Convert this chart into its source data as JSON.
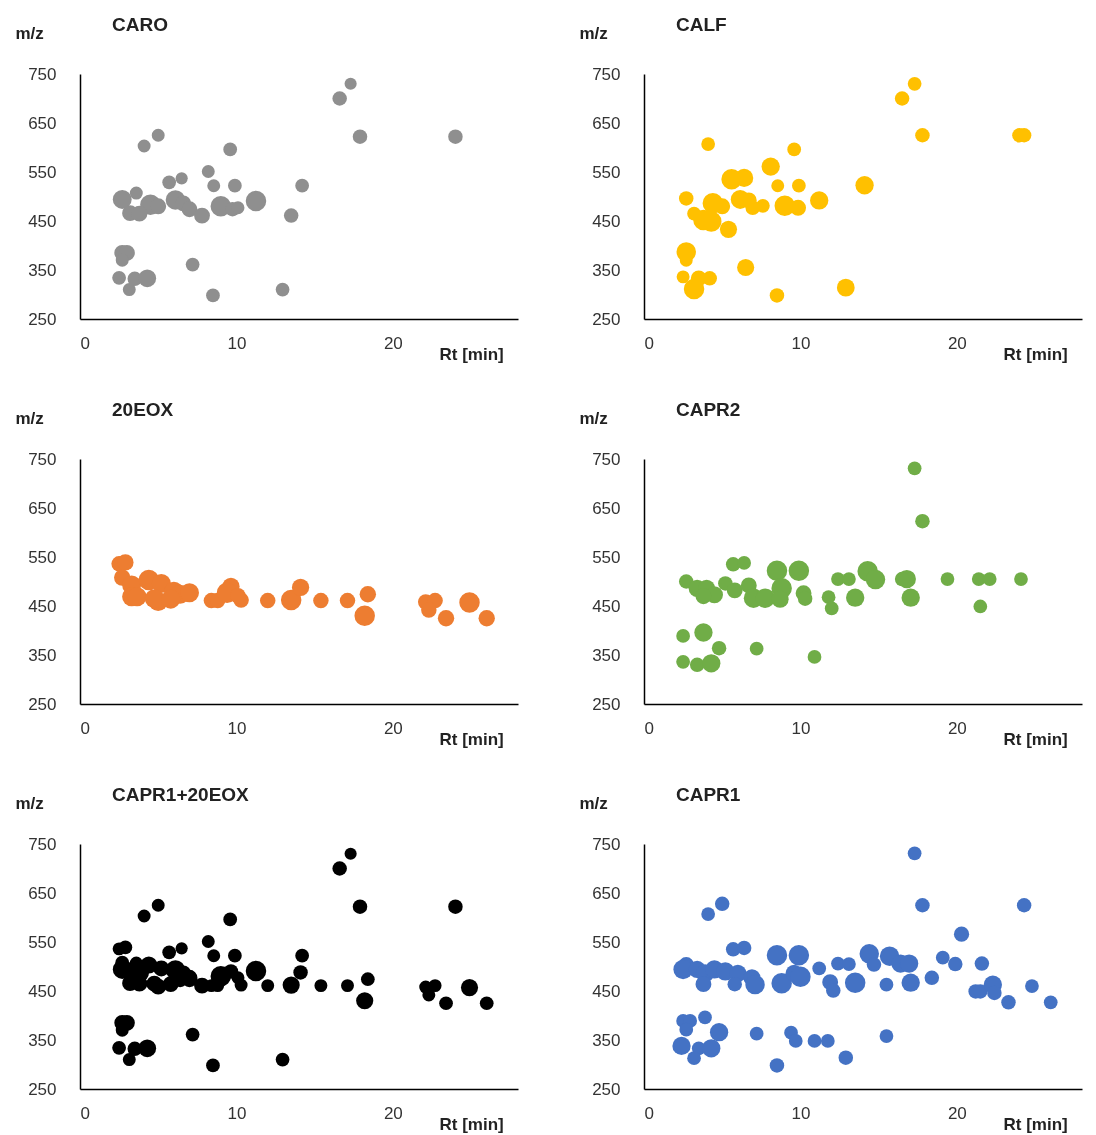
{
  "chart_data": [
    {
      "type": "bubble",
      "title": "CARO",
      "xlabel": "Rt [min]",
      "ylabel": "m/z",
      "xlim": [
        0,
        28
      ],
      "xticks": [
        0,
        10,
        20
      ],
      "ylim": [
        250,
        750
      ],
      "yticks": [
        250,
        350,
        450,
        550,
        650,
        750
      ],
      "series": [
        {
          "color": "#8f8f8f",
          "x": [
            17.3,
            16.6,
            17.9,
            24.0,
            5.0,
            4.1,
            9.6,
            8.2,
            6.5,
            5.7,
            8.55,
            9.9,
            14.2,
            3.6,
            2.7,
            4.5,
            5.0,
            3.2,
            3.8,
            6.1,
            6.6,
            7.0,
            7.8,
            9.0,
            9.75,
            10.1,
            11.25,
            13.5,
            2.7,
            3.0,
            2.7,
            7.2,
            2.5,
            3.5,
            4.3,
            3.15,
            8.5,
            12.95
          ],
          "values": [
            730,
            700,
            622,
            622,
            625,
            603,
            596,
            551,
            537,
            529,
            522,
            522,
            522,
            507,
            494,
            483,
            480,
            466,
            465,
            493,
            486,
            474,
            461,
            480,
            474,
            477,
            491,
            461,
            385,
            385,
            370,
            361,
            334,
            332,
            333,
            310,
            298,
            310
          ],
          "sizes": [
            0.35,
            0.5,
            0.5,
            0.5,
            0.4,
            0.4,
            0.45,
            0.4,
            0.35,
            0.45,
            0.4,
            0.45,
            0.45,
            0.4,
            0.85,
            1,
            0.6,
            0.6,
            0.6,
            0.9,
            0.6,
            0.6,
            0.6,
            1,
            0.5,
            0.4,
            1,
            0.5,
            0.6,
            0.6,
            0.4,
            0.45,
            0.45,
            0.5,
            0.75,
            0.4,
            0.45,
            0.45
          ]
        }
      ]
    },
    {
      "type": "bubble",
      "title": "CALF",
      "xlabel": "Rt [min]",
      "ylabel": "m/z",
      "xlim": [
        0,
        28
      ],
      "xticks": [
        0,
        10,
        20
      ],
      "ylim": [
        250,
        750
      ],
      "yticks": [
        250,
        350,
        450,
        550,
        650,
        750
      ],
      "series": [
        {
          "color": "#ffc000",
          "x": [
            17.3,
            16.5,
            17.8,
            24.0,
            24.3,
            4.1,
            9.6,
            8.1,
            5.6,
            6.4,
            8.55,
            9.9,
            14.1,
            2.7,
            4.4,
            5.0,
            3.2,
            3.8,
            4.3,
            5.4,
            6.15,
            6.7,
            6.95,
            7.6,
            9.0,
            9.85,
            11.2,
            2.7,
            2.7,
            6.5,
            2.5,
            3.5,
            4.2,
            3.2,
            8.5,
            12.9
          ],
          "values": [
            730,
            700,
            625,
            625,
            625,
            607,
            596,
            561,
            535,
            538,
            522,
            522,
            523,
            496,
            486,
            480,
            465,
            452,
            449,
            433,
            494,
            492,
            477,
            481,
            481,
            477,
            492,
            387,
            370,
            355,
            336,
            333,
            333,
            311,
            298,
            314
          ],
          "sizes": [
            0.45,
            0.5,
            0.5,
            0.5,
            0.5,
            0.45,
            0.45,
            0.8,
            1,
            0.8,
            0.4,
            0.45,
            0.8,
            0.5,
            1,
            0.6,
            0.45,
            1,
            1,
            0.7,
            0.85,
            0.6,
            0.5,
            0.45,
            1,
            0.6,
            0.8,
            0.9,
            0.4,
            0.7,
            0.4,
            0.6,
            0.5,
            1,
            0.5,
            0.75
          ]
        }
      ]
    },
    {
      "type": "bubble",
      "title": "20EOX",
      "xlabel": "Rt [min]",
      "ylabel": "m/z",
      "xlim": [
        0,
        28
      ],
      "xticks": [
        0,
        10,
        20
      ],
      "ylim": [
        250,
        750
      ],
      "yticks": [
        250,
        350,
        450,
        550,
        650,
        750
      ],
      "series": [
        {
          "color": "#ed7d31",
          "x": [
            2.5,
            2.9,
            2.7,
            3.3,
            3.3,
            4.4,
            5.0,
            5.2,
            6.0,
            6.4,
            7.0,
            3.65,
            4.75,
            5.8,
            8.4,
            8.8,
            9.65,
            9.4,
            10.3,
            10.1,
            12.0,
            13.5,
            14.1,
            15.4,
            17.1,
            18.4,
            18.2,
            22.1,
            22.7,
            22.3,
            23.4,
            24.9,
            26.0
          ],
          "values": [
            536,
            539,
            508,
            493,
            469,
            503,
            459,
            496,
            480,
            474,
            477,
            469,
            465,
            464,
            461,
            461,
            490,
            477,
            462,
            471,
            461,
            462,
            488,
            461,
            461,
            474,
            430,
            458,
            461,
            442,
            425,
            457,
            425
          ],
          "sizes": [
            0.57,
            0.64,
            0.64,
            0.86,
            0.86,
            1,
            0.86,
            0.86,
            0.86,
            0.86,
            0.86,
            0.86,
            0.86,
            0.86,
            0.57,
            0.57,
            0.71,
            1,
            0.57,
            0.57,
            0.57,
            1,
            0.71,
            0.57,
            0.57,
            0.64,
            1,
            0.57,
            0.57,
            0.57,
            0.64,
            1,
            0.64
          ]
        }
      ]
    },
    {
      "type": "bubble",
      "title": "CAPR2",
      "xlabel": "Rt [min]",
      "ylabel": "m/z",
      "xlim": [
        0,
        28
      ],
      "xticks": [
        0,
        10,
        20
      ],
      "ylim": [
        250,
        750
      ],
      "yticks": [
        250,
        350,
        450,
        550,
        650,
        750
      ],
      "series": [
        {
          "color": "#70ad47",
          "x": [
            17.3,
            17.8,
            5.7,
            6.4,
            8.5,
            9.9,
            12.4,
            13.1,
            14.3,
            14.8,
            16.8,
            16.5,
            19.4,
            21.4,
            22.1,
            24.1,
            21.5,
            2.7,
            3.4,
            4.0,
            4.5,
            3.8,
            5.2,
            5.8,
            6.7,
            7.0,
            7.75,
            8.8,
            8.7,
            10.2,
            10.3,
            11.8,
            12.0,
            13.5,
            17.05,
            2.5,
            3.8,
            4.8,
            7.2,
            2.5,
            3.4,
            4.3,
            10.9
          ],
          "values": [
            731,
            623,
            535,
            538,
            522,
            522,
            505,
            505,
            521,
            504,
            505,
            505,
            505,
            505,
            505,
            505,
            449,
            500,
            486,
            486,
            473,
            470,
            496,
            482,
            492,
            466,
            466,
            486,
            464,
            476,
            465,
            468,
            445,
            467,
            467,
            389,
            396,
            364,
            363,
            336,
            330,
            333,
            346
          ],
          "sizes": [
            0.45,
            0.5,
            0.5,
            0.45,
            1,
            1,
            0.45,
            0.45,
            1,
            0.9,
            0.8,
            0.5,
            0.45,
            0.45,
            0.45,
            0.45,
            0.45,
            0.5,
            0.7,
            0.7,
            0.7,
            0.6,
            0.5,
            0.6,
            0.6,
            0.9,
            0.9,
            1,
            0.7,
            0.6,
            0.5,
            0.45,
            0.45,
            0.8,
            0.8,
            0.45,
            0.8,
            0.5,
            0.45,
            0.45,
            0.5,
            0.8,
            0.45
          ]
        }
      ]
    },
    {
      "type": "bubble",
      "title": "CAPR1+20EOX",
      "xlabel": "Rt [min]",
      "ylabel": "m/z",
      "xlim": [
        0,
        28
      ],
      "xticks": [
        0,
        10,
        20
      ],
      "ylim": [
        250,
        750
      ],
      "yticks": [
        250,
        350,
        450,
        550,
        650,
        750
      ],
      "series": [
        {
          "color": "#000000",
          "x": [
            17.3,
            16.6,
            17.9,
            24.0,
            5.0,
            4.1,
            9.6,
            8.2,
            6.5,
            5.7,
            8.55,
            9.9,
            14.2,
            3.6,
            2.7,
            3.2,
            3.8,
            6.1,
            6.6,
            7.0,
            7.8,
            9.0,
            10.1,
            11.25,
            2.7,
            3.0,
            2.7,
            7.2,
            2.5,
            3.5,
            4.3,
            3.15,
            8.5,
            12.95,
            2.5,
            2.9,
            2.7,
            3.3,
            3.9,
            4.4,
            5.0,
            5.2,
            6.4,
            7.0,
            4.75,
            5.8,
            8.4,
            8.8,
            9.65,
            10.3,
            12.0,
            13.5,
            14.1,
            15.4,
            17.1,
            18.4,
            18.2,
            22.1,
            22.7,
            22.3,
            23.4,
            24.9,
            26.0
          ],
          "values": [
            730,
            700,
            622,
            622,
            625,
            603,
            596,
            551,
            537,
            529,
            522,
            522,
            522,
            507,
            494,
            466,
            465,
            493,
            486,
            474,
            461,
            480,
            477,
            491,
            385,
            385,
            370,
            361,
            334,
            332,
            333,
            310,
            298,
            310,
            536,
            539,
            508,
            493,
            486,
            503,
            459,
            496,
            474,
            477,
            465,
            464,
            461,
            461,
            490,
            462,
            461,
            462,
            488,
            461,
            461,
            474,
            430,
            458,
            461,
            442,
            425,
            457,
            425
          ],
          "sizes": [
            0.35,
            0.5,
            0.5,
            0.5,
            0.4,
            0.4,
            0.45,
            0.4,
            0.35,
            0.45,
            0.4,
            0.45,
            0.45,
            0.4,
            0.85,
            0.6,
            0.6,
            0.9,
            0.6,
            0.6,
            0.6,
            1,
            0.4,
            1,
            0.6,
            0.6,
            0.4,
            0.45,
            0.45,
            0.5,
            0.75,
            0.4,
            0.45,
            0.45,
            0.4,
            0.45,
            0.45,
            0.6,
            0.6,
            0.7,
            0.6,
            0.6,
            0.6,
            0.6,
            0.6,
            0.6,
            0.4,
            0.4,
            0.5,
            0.4,
            0.4,
            0.7,
            0.5,
            0.4,
            0.4,
            0.45,
            0.7,
            0.4,
            0.4,
            0.4,
            0.45,
            0.7,
            0.45
          ]
        }
      ]
    },
    {
      "type": "bubble",
      "title": "CAPR1",
      "xlabel": "Rt [min]",
      "ylabel": "m/z",
      "xlim": [
        0,
        28
      ],
      "xticks": [
        0,
        10,
        20
      ],
      "ylim": [
        250,
        750
      ],
      "yticks": [
        250,
        350,
        450,
        550,
        650,
        750
      ],
      "series": [
        {
          "color": "#4472c4",
          "x": [
            17.3,
            17.8,
            24.3,
            5.0,
            4.1,
            20.3,
            5.7,
            6.4,
            8.5,
            9.9,
            11.2,
            12.4,
            13.1,
            14.4,
            14.7,
            15.7,
            16.4,
            16.95,
            19.1,
            19.9,
            21.6,
            21.2,
            21.5,
            2.7,
            2.5,
            3.4,
            3.9,
            4.5,
            5.2,
            6.0,
            6.9,
            8.8,
            9.6,
            3.8,
            5.8,
            7.1,
            10.0,
            11.9,
            12.1,
            13.5,
            15.5,
            17.05,
            18.4,
            22.3,
            22.4,
            23.3,
            24.8,
            26.0,
            2.5,
            2.95,
            2.7,
            3.9,
            4.8,
            2.4,
            3.5,
            4.3,
            3.2,
            7.2,
            9.4,
            9.7,
            10.9,
            11.75,
            15.5,
            8.5,
            12.9
          ],
          "values": [
            731,
            625,
            625,
            628,
            607,
            566,
            535,
            538,
            523,
            523,
            496,
            506,
            505,
            526,
            504,
            521,
            506,
            506,
            518,
            505,
            506,
            449,
            449,
            503,
            494,
            494,
            486,
            494,
            490,
            486,
            477,
            466,
            486,
            464,
            464,
            463,
            479,
            468,
            451,
            467,
            463,
            467,
            477,
            463,
            446,
            427,
            460,
            427,
            389,
            389,
            371,
            396,
            366,
            338,
            333,
            333,
            313,
            363,
            365,
            348,
            348,
            348,
            358,
            298,
            314
          ],
          "sizes": [
            0.45,
            0.5,
            0.5,
            0.5,
            0.45,
            0.55,
            0.5,
            0.5,
            1,
            1,
            0.45,
            0.45,
            0.45,
            0.9,
            0.5,
            0.9,
            0.8,
            0.8,
            0.45,
            0.5,
            0.5,
            0.5,
            0.5,
            0.6,
            0.9,
            0.7,
            0.8,
            0.8,
            0.8,
            0.7,
            0.7,
            1,
            0.7,
            0.6,
            0.5,
            0.9,
            1,
            0.6,
            0.5,
            1,
            0.45,
            0.8,
            0.5,
            0.8,
            0.5,
            0.5,
            0.45,
            0.45,
            0.45,
            0.45,
            0.45,
            0.45,
            0.8,
            0.8,
            0.45,
            0.8,
            0.45,
            0.45,
            0.45,
            0.45,
            0.45,
            0.45,
            0.45,
            0.5,
            0.5
          ]
        }
      ]
    }
  ]
}
